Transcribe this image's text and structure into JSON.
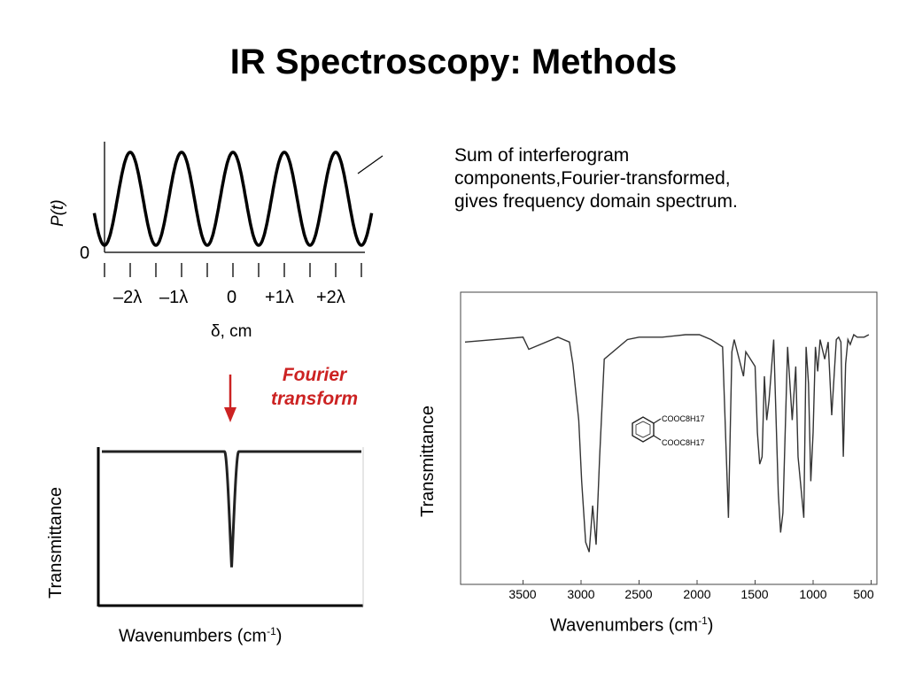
{
  "slide": {
    "title": "IR Spectroscopy: Methods",
    "description_lines": [
      "Sum of interferogram",
      "components,Fourier-transformed,",
      "gives frequency domain spectrum."
    ],
    "transform_label_lines": [
      "Fourier",
      "transform"
    ],
    "accent_color": "#cc2222"
  },
  "chart_data": [
    {
      "type": "line",
      "ylabel": "P(t)",
      "xlabel": "δ, cm",
      "y_zero_label": "0",
      "x_tick_labels": [
        "–2λ",
        "–1λ",
        "0",
        "+1λ",
        "+2λ"
      ],
      "x": [
        -2,
        -1,
        0,
        1,
        2
      ],
      "series": [
        {
          "shape": "cosine",
          "periods_shown": 5,
          "peaks_at": [
            -2,
            -1,
            0,
            1,
            2
          ]
        }
      ]
    },
    {
      "type": "line",
      "ylabel": "Transmittance",
      "xlabel_main": "Wavenumbers (cm",
      "xlabel_sup": "-1",
      "xlabel_end": ")",
      "series": [
        {
          "shape": "single-absorption-band",
          "band_position": 0.5,
          "min_transmittance": 0.05
        }
      ]
    },
    {
      "type": "line",
      "ylabel": "Transmittance",
      "xlabel_main": "Wavenumbers (cm",
      "xlabel_sup": "-1",
      "xlabel_end": ")",
      "xlim": [
        4000,
        500
      ],
      "x_ticks": [
        3500,
        3000,
        2500,
        2000,
        1500,
        1000,
        500
      ],
      "x_tick_labels": [
        "3500",
        "3000",
        "2500",
        "2000",
        "1500",
        "1000",
        "500"
      ],
      "molecule_labels": [
        "COOC8H17",
        "COOC8H17"
      ],
      "series": [
        {
          "x": [
            3500,
            3450,
            3200,
            3100,
            3070,
            3020,
            2995,
            2960,
            2930,
            2900,
            2870,
            2840,
            2800,
            2600,
            2500,
            2300,
            2100,
            1980,
            1880,
            1780,
            1730,
            1700,
            1680,
            1600,
            1580,
            1500,
            1480,
            1460,
            1440,
            1420,
            1400,
            1380,
            1340,
            1300,
            1280,
            1260,
            1220,
            1180,
            1150,
            1130,
            1110,
            1080,
            1060,
            1040,
            1020,
            1000,
            980,
            960,
            940,
            900,
            870,
            840,
            800,
            780,
            760,
            740,
            720,
            700,
            680,
            650,
            620,
            560,
            520
          ],
          "y": [
            0.94,
            0.89,
            0.94,
            0.92,
            0.83,
            0.6,
            0.35,
            0.1,
            0.06,
            0.25,
            0.09,
            0.45,
            0.85,
            0.93,
            0.94,
            0.94,
            0.95,
            0.95,
            0.93,
            0.9,
            0.2,
            0.88,
            0.93,
            0.78,
            0.88,
            0.82,
            0.55,
            0.42,
            0.45,
            0.78,
            0.6,
            0.68,
            0.93,
            0.3,
            0.14,
            0.22,
            0.9,
            0.6,
            0.82,
            0.45,
            0.35,
            0.2,
            0.9,
            0.75,
            0.35,
            0.55,
            0.9,
            0.8,
            0.93,
            0.85,
            0.92,
            0.62,
            0.93,
            0.94,
            0.92,
            0.45,
            0.83,
            0.93,
            0.91,
            0.95,
            0.94,
            0.94,
            0.95
          ]
        }
      ]
    }
  ]
}
